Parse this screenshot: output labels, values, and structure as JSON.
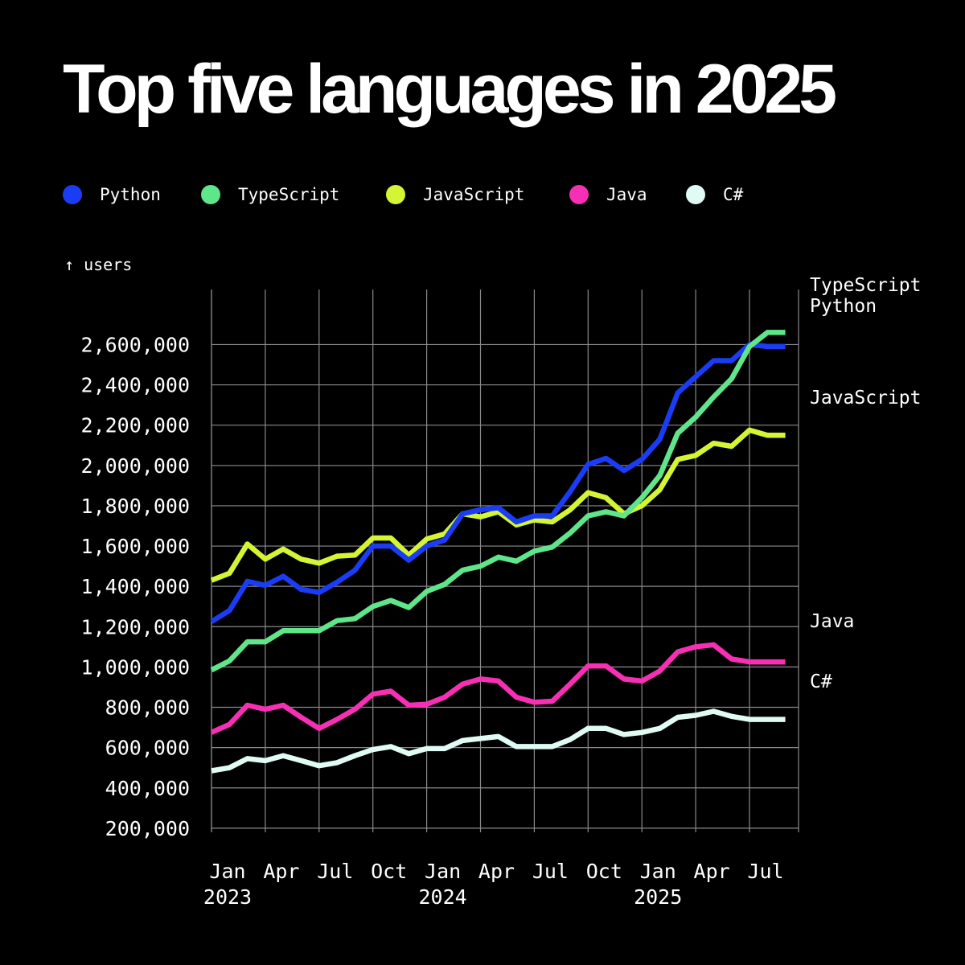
{
  "chart_data": {
    "type": "line",
    "title": "Top five languages in 2025",
    "ylabel": "↑ users",
    "xlabel": "",
    "ylim": [
      0,
      2650000
    ],
    "xlim": [
      "2023-01",
      "2025-09"
    ],
    "grid": true,
    "legend_position": "top-left",
    "y_ticks": [
      {
        "value": 200000,
        "label": "200,000"
      },
      {
        "value": 400000,
        "label": "400,000"
      },
      {
        "value": 600000,
        "label": "600,000"
      },
      {
        "value": 800000,
        "label": "800,000"
      },
      {
        "value": 1000000,
        "label": "1,000,000"
      },
      {
        "value": 1200000,
        "label": "1,200,000"
      },
      {
        "value": 1400000,
        "label": "1,400,000"
      },
      {
        "value": 1600000,
        "label": "1,600,000"
      },
      {
        "value": 1800000,
        "label": "1,800,000"
      },
      {
        "value": 2000000,
        "label": "2,000,000"
      },
      {
        "value": 2200000,
        "label": "2,200,000"
      },
      {
        "value": 2400000,
        "label": "2,400,000"
      },
      {
        "value": 2600000,
        "label": "2,600,000"
      }
    ],
    "x_ticks": [
      {
        "month": "2023-01",
        "label": "Jan",
        "year": "2023"
      },
      {
        "month": "2023-04",
        "label": "Apr",
        "year": ""
      },
      {
        "month": "2023-07",
        "label": "Jul",
        "year": ""
      },
      {
        "month": "2023-10",
        "label": "Oct",
        "year": ""
      },
      {
        "month": "2024-01",
        "label": "Jan",
        "year": "2024"
      },
      {
        "month": "2024-04",
        "label": "Apr",
        "year": ""
      },
      {
        "month": "2024-07",
        "label": "Jul",
        "year": ""
      },
      {
        "month": "2024-10",
        "label": "Oct",
        "year": ""
      },
      {
        "month": "2025-01",
        "label": "Jan",
        "year": "2025"
      },
      {
        "month": "2025-04",
        "label": "Apr",
        "year": ""
      },
      {
        "month": "2025-07",
        "label": "Jul",
        "year": ""
      }
    ],
    "x": [
      "2023-01",
      "2023-02",
      "2023-03",
      "2023-04",
      "2023-05",
      "2023-06",
      "2023-07",
      "2023-08",
      "2023-09",
      "2023-10",
      "2023-11",
      "2023-12",
      "2024-01",
      "2024-02",
      "2024-03",
      "2024-04",
      "2024-05",
      "2024-06",
      "2024-07",
      "2024-08",
      "2024-09",
      "2024-10",
      "2024-11",
      "2024-12",
      "2025-01",
      "2025-02",
      "2025-03",
      "2025-04",
      "2025-05",
      "2025-06",
      "2025-07",
      "2025-08",
      "2025-09"
    ],
    "series": [
      {
        "name": "Python",
        "end_label": "Python",
        "color": "#1a3cf5",
        "values": [
          1225000,
          1280000,
          1425000,
          1405000,
          1450000,
          1385000,
          1370000,
          1420000,
          1480000,
          1600000,
          1600000,
          1530000,
          1600000,
          1630000,
          1760000,
          1780000,
          1790000,
          1720000,
          1750000,
          1750000,
          1870000,
          2005000,
          2035000,
          1975000,
          2030000,
          2130000,
          2360000,
          2440000,
          2520000,
          2520000,
          2600000,
          2590000,
          2590000
        ]
      },
      {
        "name": "TypeScript",
        "end_label": "TypeScript",
        "color": "#5fe58a",
        "values": [
          985000,
          1030000,
          1125000,
          1125000,
          1180000,
          1180000,
          1180000,
          1230000,
          1240000,
          1300000,
          1330000,
          1295000,
          1375000,
          1410000,
          1480000,
          1500000,
          1545000,
          1525000,
          1575000,
          1595000,
          1665000,
          1750000,
          1770000,
          1750000,
          1840000,
          1950000,
          2160000,
          2240000,
          2340000,
          2430000,
          2590000,
          2660000,
          2660000
        ]
      },
      {
        "name": "JavaScript",
        "end_label": "JavaScript",
        "color": "#d5f534",
        "values": [
          1430000,
          1465000,
          1610000,
          1535000,
          1585000,
          1535000,
          1515000,
          1550000,
          1555000,
          1640000,
          1640000,
          1555000,
          1635000,
          1660000,
          1760000,
          1745000,
          1770000,
          1705000,
          1730000,
          1720000,
          1780000,
          1865000,
          1840000,
          1760000,
          1800000,
          1880000,
          2030000,
          2050000,
          2110000,
          2095000,
          2175000,
          2150000,
          2150000
        ]
      },
      {
        "name": "Java",
        "end_label": "Java",
        "color": "#f72fb4",
        "values": [
          675000,
          715000,
          810000,
          790000,
          810000,
          750000,
          695000,
          740000,
          790000,
          865000,
          880000,
          810000,
          815000,
          850000,
          915000,
          940000,
          930000,
          850000,
          825000,
          830000,
          915000,
          1005000,
          1005000,
          940000,
          930000,
          980000,
          1075000,
          1100000,
          1110000,
          1040000,
          1025000,
          1025000,
          1025000
        ]
      },
      {
        "name": "C#",
        "end_label": "C#",
        "color": "#dffbf4",
        "values": [
          485000,
          500000,
          545000,
          535000,
          560000,
          535000,
          510000,
          525000,
          560000,
          590000,
          605000,
          570000,
          595000,
          595000,
          635000,
          645000,
          655000,
          605000,
          605000,
          605000,
          640000,
          695000,
          695000,
          665000,
          675000,
          695000,
          750000,
          760000,
          780000,
          755000,
          740000,
          740000,
          740000
        ]
      }
    ]
  }
}
